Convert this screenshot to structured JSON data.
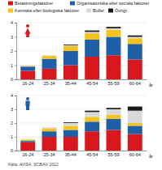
{
  "chart_data": [
    {
      "type": "bar",
      "stacked": true,
      "legend": "top",
      "grid": true,
      "x_label": "år",
      "categories": [
        "16-24",
        "25-34",
        "35-44",
        "45-54",
        "55-59",
        "60-64"
      ],
      "ylim": [
        0,
        4
      ],
      "yticks": [
        0,
        1,
        2,
        3,
        4
      ],
      "series": [
        {
          "name": "Belastningsfaktorer",
          "color": "#d7191f",
          "values": [
            0.6,
            0.75,
            1.0,
            1.6,
            1.7,
            1.4
          ]
        },
        {
          "name": "Organisatoriska eller sociala faktorer",
          "color": "#1f5fa8",
          "values": [
            0.3,
            0.7,
            1.0,
            1.2,
            1.3,
            1.1
          ]
        },
        {
          "name": "Kemiska eller biologiska faktorer",
          "color": "#f6c21c",
          "values": [
            0.05,
            0.2,
            0.35,
            0.45,
            0.5,
            0.4
          ]
        },
        {
          "name": "Buller",
          "color": "#d9d9d9",
          "values": [
            0.05,
            0.05,
            0.05,
            0.1,
            0.1,
            0.1
          ]
        },
        {
          "name": "Övrigt",
          "color": "#1a1a1a",
          "values": [
            0,
            0,
            0.05,
            0.1,
            0.1,
            0.1
          ]
        }
      ]
    },
    {
      "type": "bar",
      "stacked": true,
      "grid": true,
      "x_label": "år",
      "categories": [
        "16-24",
        "25-34",
        "35-44",
        "45-54",
        "55-59",
        "60-64"
      ],
      "ylim": [
        0,
        4
      ],
      "yticks": [
        0,
        1,
        2,
        3,
        4
      ],
      "series": [
        {
          "color": "#d7191f",
          "values": [
            0.6,
            1.0,
            1.0,
            1.4,
            1.5,
            1.2
          ]
        },
        {
          "color": "#1f5fa8",
          "values": [
            0.1,
            0.4,
            0.5,
            0.7,
            0.8,
            0.6
          ]
        },
        {
          "color": "#f6c21c",
          "values": [
            0.1,
            0.2,
            0.3,
            0.35,
            0.3,
            0.2
          ]
        },
        {
          "color": "#d9d9d9",
          "values": [
            0.05,
            0.1,
            0.2,
            0.35,
            0.4,
            0.9
          ]
        },
        {
          "color": "#1a1a1a",
          "values": [
            0,
            0,
            0.05,
            0.1,
            0.1,
            0.3
          ]
        }
      ]
    }
  ],
  "source": "Källa: AVISA, SCB/AV 2012"
}
